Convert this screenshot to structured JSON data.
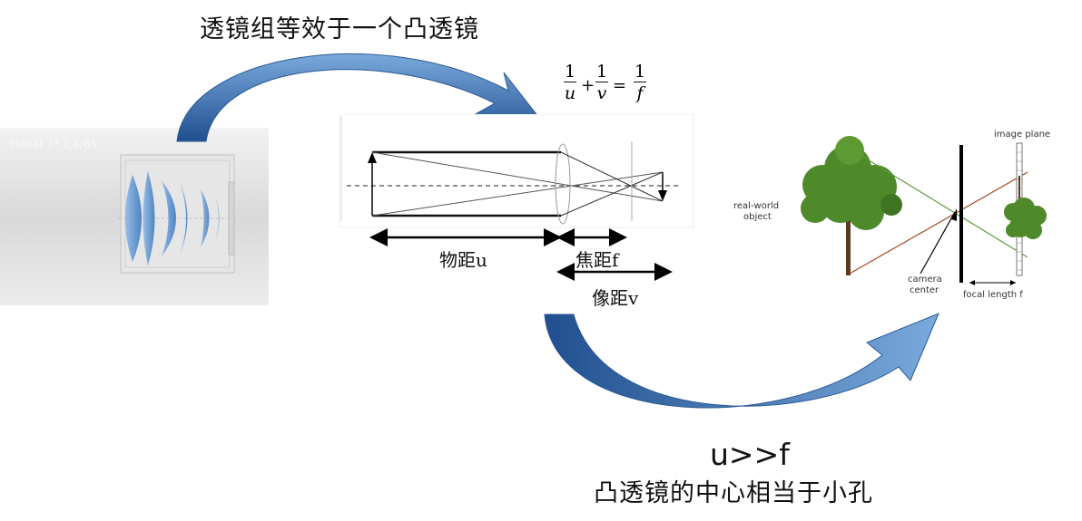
{
  "title": "透镜组等效于一个凸透镜",
  "lens_panel": {
    "caption": "Planar T* 1,4/85"
  },
  "formula": {
    "num1": "1",
    "den1": "u",
    "plus": "+",
    "num2": "1",
    "den2": "v",
    "eq": "=",
    "num3": "1",
    "den3": "f"
  },
  "lens_diagram": {
    "object_distance": "物距u",
    "focal_length": "焦距f",
    "image_distance": "像距v"
  },
  "pinhole_diagram": {
    "image_plane": "image plane",
    "real_world_object_line1": "real-world",
    "real_world_object_line2": "object",
    "camera_center_line1": "camera",
    "camera_center_line2": "center",
    "focal_length": "focal length f"
  },
  "condition": "u>>f",
  "conclusion": "凸透镜的中心相当于小孔",
  "colors": {
    "arrow_fill_top": "#6f9fd6",
    "arrow_fill_bottom": "#1f4f8f",
    "lens_blue": "#4a86c6",
    "tree_green": "#4e8a2a",
    "ray_green": "#5d9b3e",
    "ray_brown": "#a4471f"
  }
}
